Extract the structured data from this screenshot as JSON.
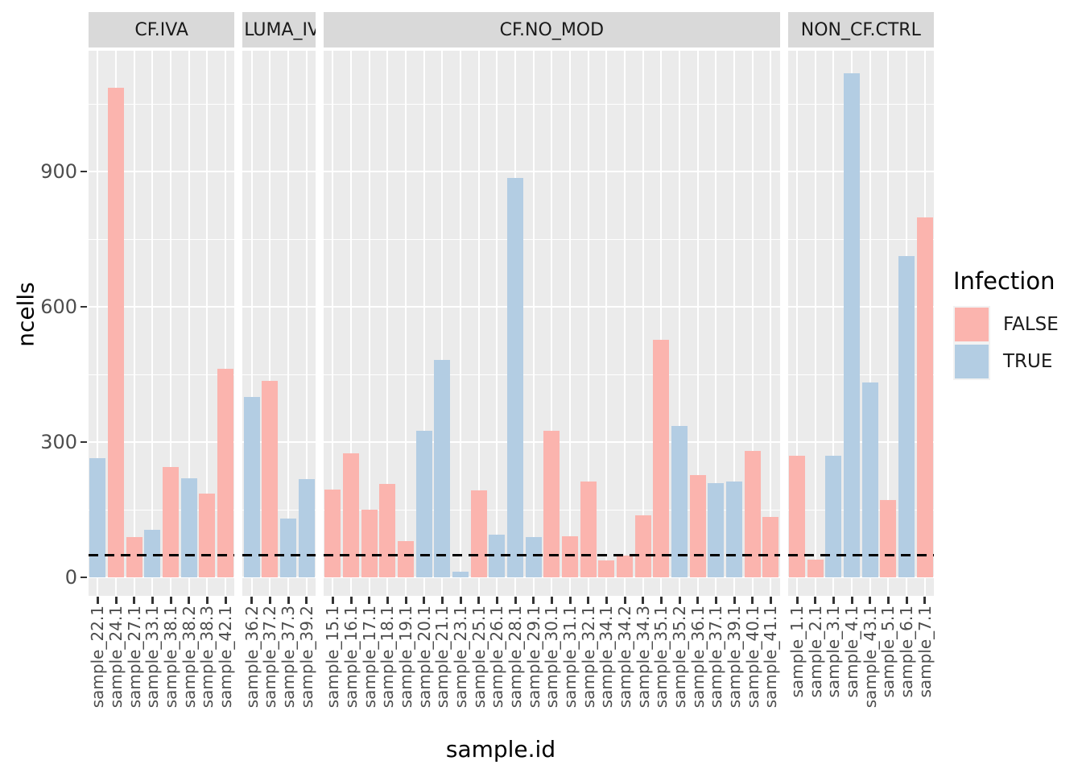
{
  "chart_data": {
    "type": "bar",
    "title": "",
    "xlabel": "sample.id",
    "ylabel": "ncells",
    "y_ticks": [
      0,
      300,
      600,
      900
    ],
    "ylim": [
      -40,
      1168
    ],
    "grid": "on",
    "hline": {
      "y": 50,
      "style": "dashed",
      "color": "#000000"
    },
    "legend": {
      "title": "Infection",
      "position": "right",
      "entries": [
        {
          "label": "FALSE",
          "color": "#FBB4AE"
        },
        {
          "label": "TRUE",
          "color": "#B3CDE3"
        }
      ]
    },
    "facets": [
      {
        "label": "CF.IVA",
        "bars": [
          {
            "id": "sample_22.1",
            "infection": "TRUE",
            "ncells": 265
          },
          {
            "id": "sample_24.1",
            "infection": "FALSE",
            "ncells": 1085
          },
          {
            "id": "sample_27.1",
            "infection": "FALSE",
            "ncells": 90
          },
          {
            "id": "sample_33.1",
            "infection": "TRUE",
            "ncells": 105
          },
          {
            "id": "sample_38.1",
            "infection": "FALSE",
            "ncells": 245
          },
          {
            "id": "sample_38.2",
            "infection": "TRUE",
            "ncells": 220
          },
          {
            "id": "sample_38.3",
            "infection": "FALSE",
            "ncells": 185
          },
          {
            "id": "sample_42.1",
            "infection": "FALSE",
            "ncells": 462
          }
        ]
      },
      {
        "label": ".LUMA_IV",
        "bars": [
          {
            "id": "sample_36.2",
            "infection": "TRUE",
            "ncells": 400
          },
          {
            "id": "sample_37.2",
            "infection": "FALSE",
            "ncells": 435
          },
          {
            "id": "sample_37.3",
            "infection": "TRUE",
            "ncells": 130
          },
          {
            "id": "sample_39.2",
            "infection": "TRUE",
            "ncells": 218
          }
        ]
      },
      {
        "label": "CF.NO_MOD",
        "bars": [
          {
            "id": "sample_15.1",
            "infection": "FALSE",
            "ncells": 195
          },
          {
            "id": "sample_16.1",
            "infection": "FALSE",
            "ncells": 275
          },
          {
            "id": "sample_17.1",
            "infection": "FALSE",
            "ncells": 150
          },
          {
            "id": "sample_18.1",
            "infection": "FALSE",
            "ncells": 208
          },
          {
            "id": "sample_19.1",
            "infection": "FALSE",
            "ncells": 80
          },
          {
            "id": "sample_20.1",
            "infection": "TRUE",
            "ncells": 325
          },
          {
            "id": "sample_21.1",
            "infection": "TRUE",
            "ncells": 482
          },
          {
            "id": "sample_23.1",
            "infection": "TRUE",
            "ncells": 12
          },
          {
            "id": "sample_25.1",
            "infection": "FALSE",
            "ncells": 193
          },
          {
            "id": "sample_26.1",
            "infection": "TRUE",
            "ncells": 95
          },
          {
            "id": "sample_28.1",
            "infection": "TRUE",
            "ncells": 885
          },
          {
            "id": "sample_29.1",
            "infection": "TRUE",
            "ncells": 90
          },
          {
            "id": "sample_30.1",
            "infection": "FALSE",
            "ncells": 325
          },
          {
            "id": "sample_31.1",
            "infection": "FALSE",
            "ncells": 91
          },
          {
            "id": "sample_32.1",
            "infection": "FALSE",
            "ncells": 212
          },
          {
            "id": "sample_34.1",
            "infection": "FALSE",
            "ncells": 37
          },
          {
            "id": "sample_34.2",
            "infection": "FALSE",
            "ncells": 48
          },
          {
            "id": "sample_34.3",
            "infection": "FALSE",
            "ncells": 138
          },
          {
            "id": "sample_35.1",
            "infection": "FALSE",
            "ncells": 527
          },
          {
            "id": "sample_35.2",
            "infection": "TRUE",
            "ncells": 336
          },
          {
            "id": "sample_36.1",
            "infection": "FALSE",
            "ncells": 227
          },
          {
            "id": "sample_37.1",
            "infection": "TRUE",
            "ncells": 209
          },
          {
            "id": "sample_39.1",
            "infection": "TRUE",
            "ncells": 212
          },
          {
            "id": "sample_40.1",
            "infection": "FALSE",
            "ncells": 280
          },
          {
            "id": "sample_41.1",
            "infection": "FALSE",
            "ncells": 134
          }
        ]
      },
      {
        "label": "NON_CF.CTRL",
        "bars": [
          {
            "id": "sample_1.1",
            "infection": "FALSE",
            "ncells": 270
          },
          {
            "id": "sample_2.1",
            "infection": "FALSE",
            "ncells": 40
          },
          {
            "id": "sample_3.1",
            "infection": "TRUE",
            "ncells": 270
          },
          {
            "id": "sample_4.1",
            "infection": "TRUE",
            "ncells": 1118
          },
          {
            "id": "sample_43.1",
            "infection": "TRUE",
            "ncells": 432
          },
          {
            "id": "sample_5.1",
            "infection": "FALSE",
            "ncells": 171
          },
          {
            "id": "sample_6.1",
            "infection": "TRUE",
            "ncells": 713
          },
          {
            "id": "sample_7.1",
            "infection": "FALSE",
            "ncells": 798
          }
        ]
      }
    ],
    "colors": {
      "panel_background": "#EBEBEB",
      "strip_background": "#D9D9D9",
      "gridline": "#FFFFFF",
      "axis_text": "#4D4D4D",
      "false_fill": "#FBB4AE",
      "true_fill": "#B3CDE3"
    }
  }
}
